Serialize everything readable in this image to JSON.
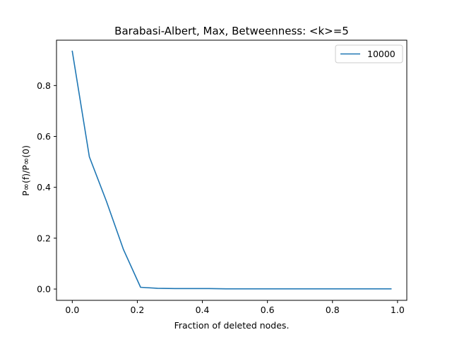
{
  "chart_data": {
    "type": "line",
    "title": "Barabasi-Albert, Max, Betweenness: <k>=5",
    "xlabel": "Fraction of deleted nodes.",
    "ylabel": "P∞(f)/P∞(0)",
    "xlim": [
      -0.0485,
      1.0285
    ],
    "ylim": [
      -0.0443,
      0.9783
    ],
    "xticks": [
      0.0,
      0.2,
      0.4,
      0.6,
      0.8,
      1.0
    ],
    "xtick_labels": [
      "0.0",
      "0.2",
      "0.4",
      "0.6",
      "0.8",
      "1.0"
    ],
    "yticks": [
      0.0,
      0.2,
      0.4,
      0.6,
      0.8
    ],
    "ytick_labels": [
      "0.0",
      "0.2",
      "0.4",
      "0.6",
      "0.8"
    ],
    "grid": false,
    "legend": "top-right",
    "series": [
      {
        "name": "10000",
        "color": "#1f77b4",
        "x": [
          0.0,
          0.0525,
          0.105,
          0.1575,
          0.21,
          0.2625,
          0.315,
          0.3675,
          0.42,
          0.4725,
          0.525,
          0.5775,
          0.63,
          0.6825,
          0.735,
          0.7875,
          0.84,
          0.8925,
          0.945,
          0.98
        ],
        "y": [
          0.935,
          0.52,
          0.345,
          0.155,
          0.007,
          0.003,
          0.002,
          0.002,
          0.002,
          0.001,
          0.001,
          0.001,
          0.001,
          0.001,
          0.001,
          0.001,
          0.001,
          0.001,
          0.001,
          0.001
        ]
      }
    ]
  }
}
